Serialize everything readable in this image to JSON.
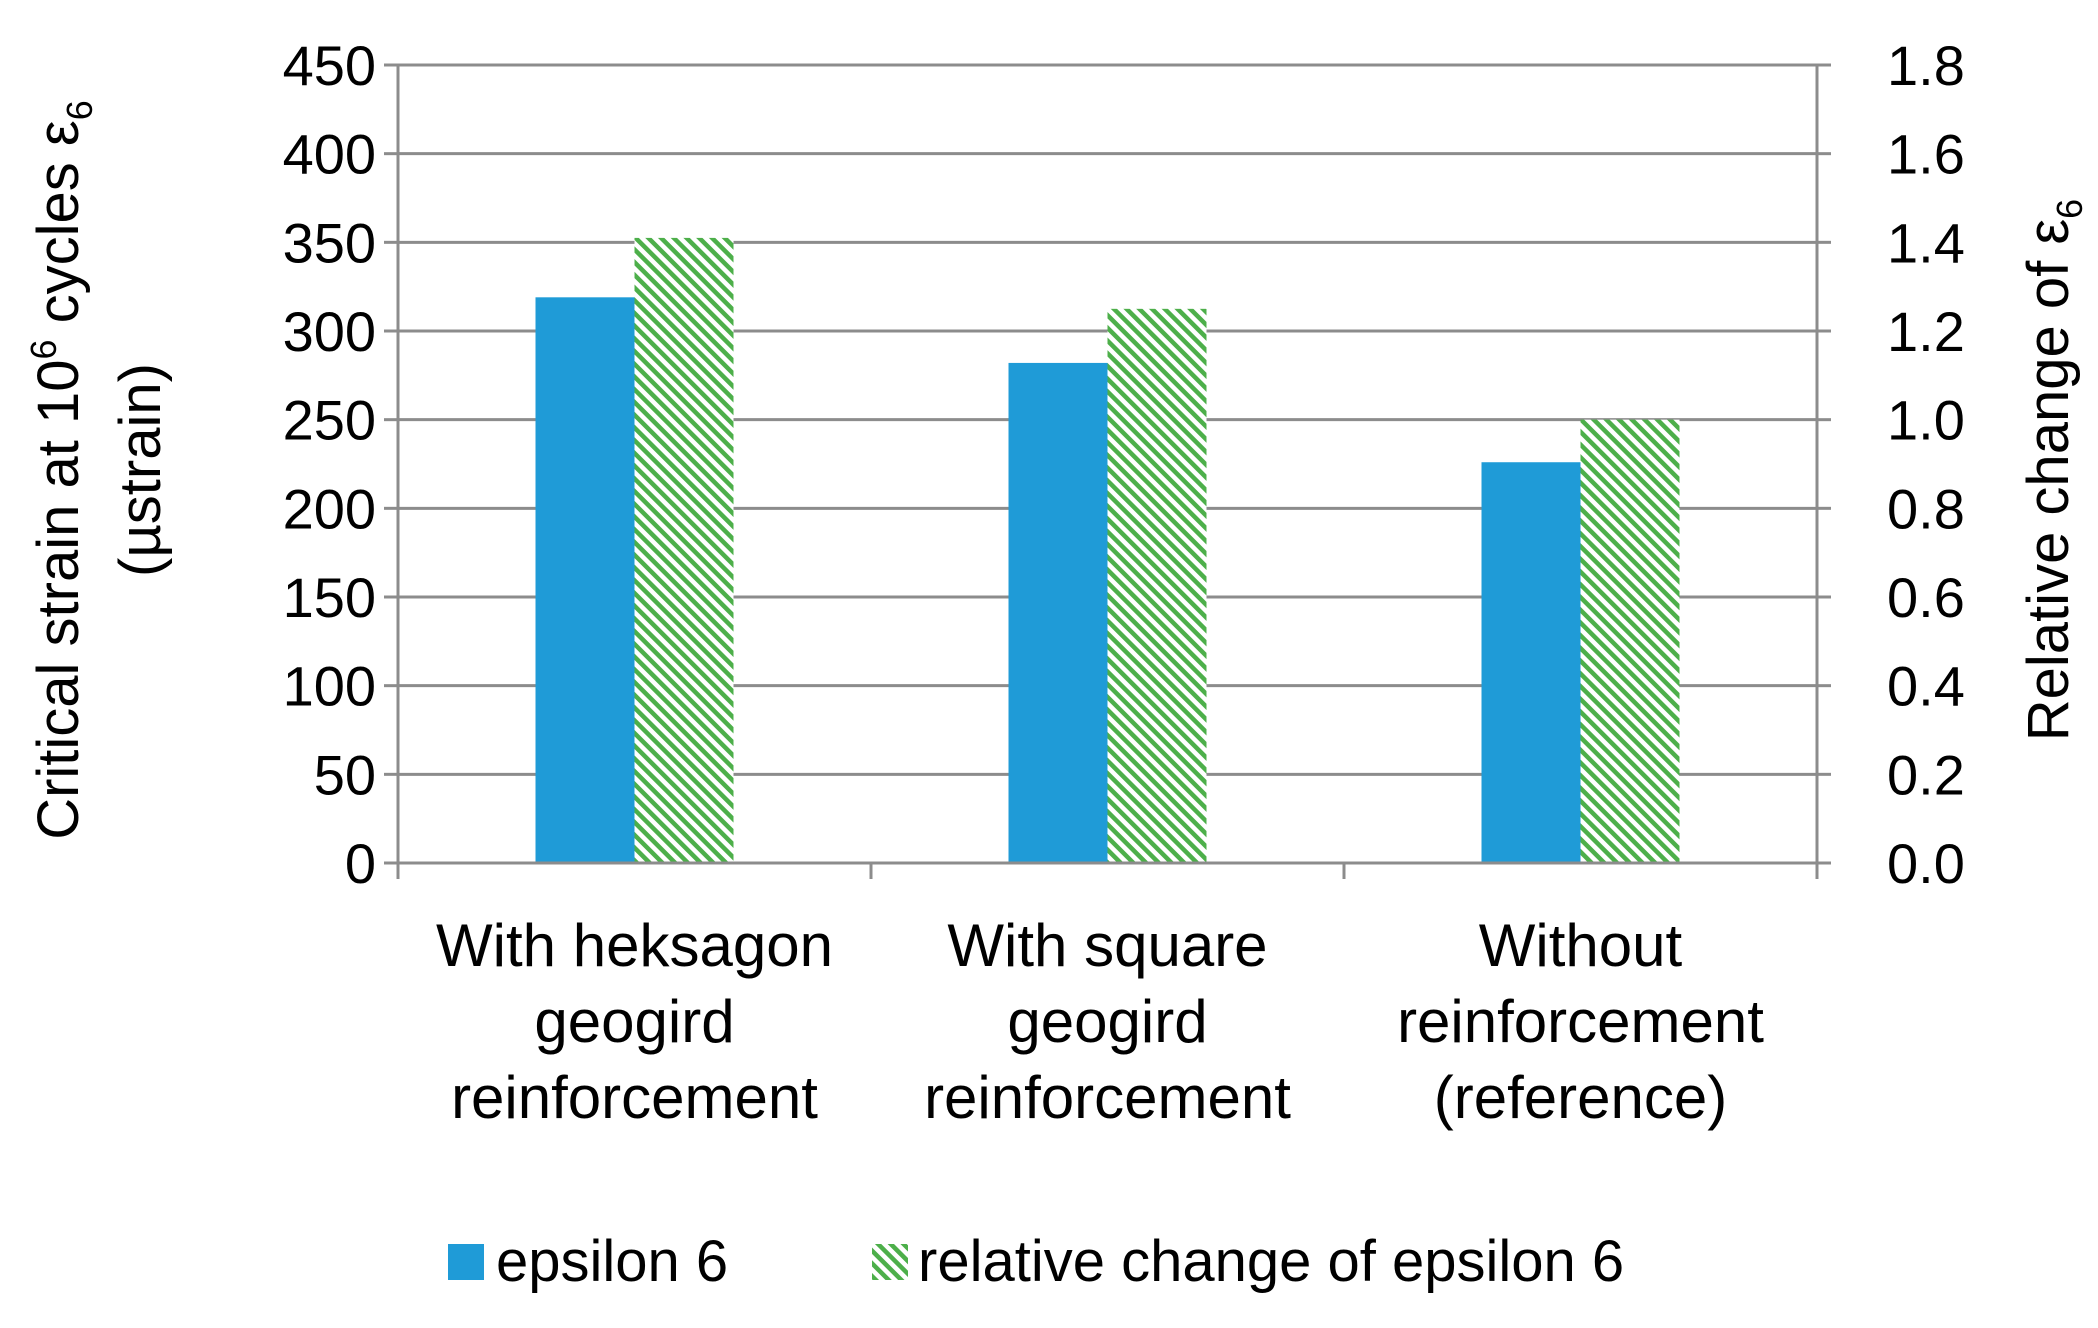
{
  "chart_data": {
    "type": "bar",
    "categories": [
      [
        "With heksagon",
        "geogird",
        "reinforcement"
      ],
      [
        "With square",
        "geogird",
        "reinforcement"
      ],
      [
        "Without",
        "reinforcement",
        "(reference)"
      ]
    ],
    "series": [
      {
        "name": "epsilon 6",
        "axis": "left",
        "values": [
          319,
          282,
          226
        ],
        "color": "#1f9bd7",
        "fill": "solid"
      },
      {
        "name": "relative change of epsilon 6",
        "axis": "right",
        "values": [
          1.41,
          1.25,
          1.0
        ],
        "color": "#4daf4a",
        "fill": "hatched"
      }
    ],
    "y_left": {
      "label_main": "Critical strain at 10",
      "label_sup": "6",
      "label_after": " cycles ε",
      "label_sub": "6",
      "label_line2": "(µstrain)",
      "ylim": [
        0,
        450
      ],
      "ticks": [
        "0",
        "50",
        "100",
        "150",
        "200",
        "250",
        "300",
        "350",
        "400",
        "450"
      ]
    },
    "y_right": {
      "label_main": "Relative change of ε",
      "label_sub": "6",
      "ylim": [
        0,
        1.8
      ],
      "ticks": [
        "0.0",
        "0.2",
        "0.4",
        "0.6",
        "0.8",
        "1.0",
        "1.2",
        "1.4",
        "1.6",
        "1.8"
      ]
    },
    "grid": true,
    "legend_position": "bottom"
  }
}
